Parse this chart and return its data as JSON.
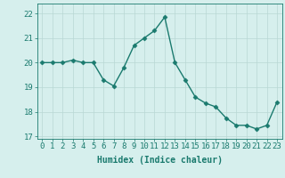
{
  "x": [
    0,
    1,
    2,
    3,
    4,
    5,
    6,
    7,
    8,
    9,
    10,
    11,
    12,
    13,
    14,
    15,
    16,
    17,
    18,
    19,
    20,
    21,
    22,
    23
  ],
  "y": [
    20.0,
    20.0,
    20.0,
    20.1,
    20.0,
    20.0,
    19.3,
    19.05,
    19.8,
    20.7,
    21.0,
    21.3,
    21.85,
    20.0,
    19.3,
    18.6,
    18.35,
    18.2,
    17.75,
    17.45,
    17.45,
    17.3,
    17.45,
    18.4
  ],
  "line_color": "#1a7a6e",
  "marker": "D",
  "marker_size": 2.5,
  "bg_color": "#d6efed",
  "grid_color": "#b8d8d4",
  "ylim": [
    16.9,
    22.4
  ],
  "xlim": [
    -0.5,
    23.5
  ],
  "yticks": [
    17,
    18,
    19,
    20,
    21,
    22
  ],
  "xticks": [
    0,
    1,
    2,
    3,
    4,
    5,
    6,
    7,
    8,
    9,
    10,
    11,
    12,
    13,
    14,
    15,
    16,
    17,
    18,
    19,
    20,
    21,
    22,
    23
  ],
  "xlabel": "Humidex (Indice chaleur)",
  "tick_color": "#1a7a6e",
  "tick_label_color": "#1a7a6e",
  "font_size_axis": 6.5,
  "font_size_xlabel": 7.0,
  "line_width": 1.0
}
